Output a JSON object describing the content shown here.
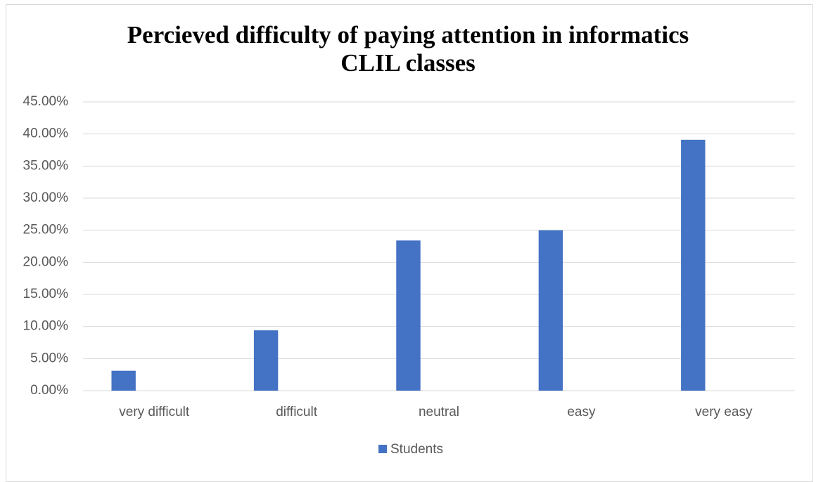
{
  "chart_data": {
    "type": "bar",
    "title": "Percieved difficulty of paying attention in informatics CLIL classes",
    "categories": [
      "very difficult",
      "difficult",
      "neutral",
      "easy",
      "very easy"
    ],
    "series": [
      {
        "name": "Students",
        "color": "#4472c4",
        "values": [
          3.1,
          9.4,
          23.4,
          25.0,
          39.1
        ]
      }
    ],
    "ylim": [
      0,
      45
    ],
    "yticks": [
      {
        "value": 0,
        "label": "0.00%"
      },
      {
        "value": 5,
        "label": "5.00%"
      },
      {
        "value": 10,
        "label": "10.00%"
      },
      {
        "value": 15,
        "label": "15.00%"
      },
      {
        "value": 20,
        "label": "20.00%"
      },
      {
        "value": 25,
        "label": "25.00%"
      },
      {
        "value": 30,
        "label": "30.00%"
      },
      {
        "value": 35,
        "label": "35.00%"
      },
      {
        "value": 40,
        "label": "40.00%"
      },
      {
        "value": 45,
        "label": "45.00%"
      }
    ],
    "grid": true,
    "legend": "bottom"
  }
}
